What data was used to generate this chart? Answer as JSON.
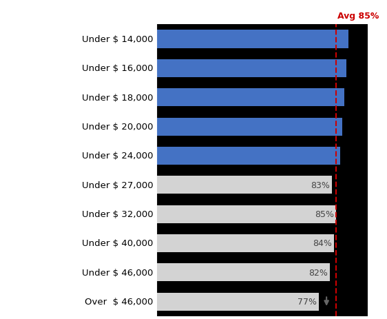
{
  "categories": [
    "Under $ 14,000",
    "Under $ 16,000",
    "Under $ 18,000",
    "Under $ 20,000",
    "Under $ 24,000",
    "Under $ 27,000",
    "Under $ 32,000",
    "Under $ 40,000",
    "Under $ 46,000",
    "Over  $ 46,000"
  ],
  "values": [
    91,
    90,
    89,
    88,
    87,
    83,
    85,
    84,
    82,
    77
  ],
  "bar_colors": [
    "#4472C4",
    "#4472C4",
    "#4472C4",
    "#4472C4",
    "#4472C4",
    "#D3D3D3",
    "#D3D3D3",
    "#D3D3D3",
    "#D3D3D3",
    "#D3D3D3"
  ],
  "show_labels": [
    false,
    false,
    false,
    false,
    false,
    true,
    true,
    true,
    true,
    true
  ],
  "avg_value": 85,
  "avg_label": "Avg 85%",
  "avg_color": "#CC0000",
  "bg_color": "#ffffff",
  "bar_bg_color": "#000000",
  "bar_label_color": "#444444",
  "label_color": "#000000",
  "xlim": [
    0,
    100
  ],
  "bar_height": 0.62,
  "down_arrow_index": 9
}
